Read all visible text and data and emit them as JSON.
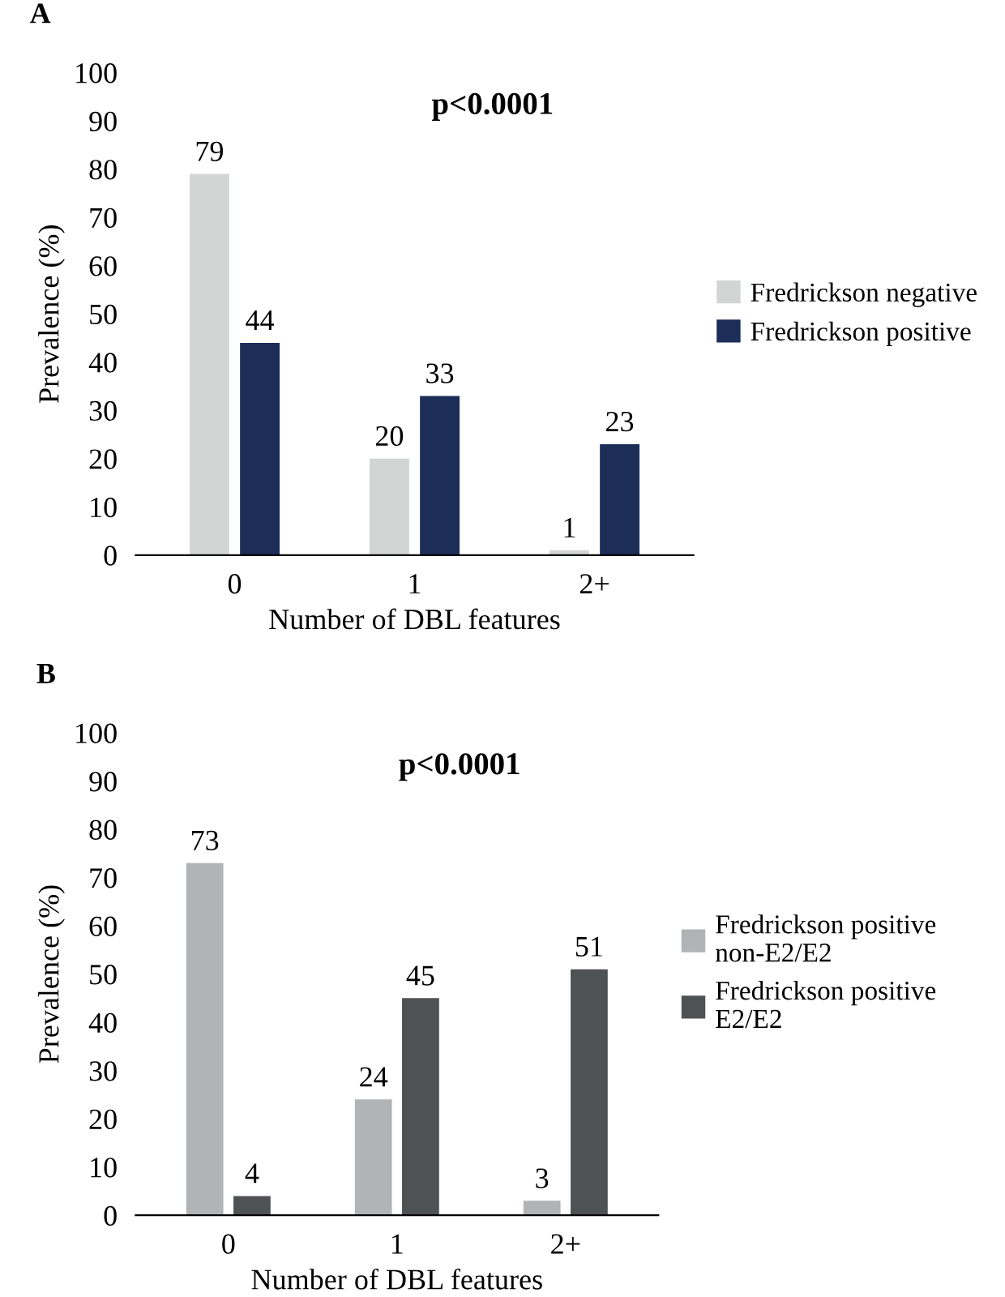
{
  "chart_data": [
    {
      "type": "bar",
      "title": "A",
      "xlabel": "Number of DBL features",
      "ylabel": "Prevalence (%)",
      "categories": [
        "0",
        "1",
        "2+"
      ],
      "series": [
        {
          "name": "Fredrickson negative",
          "color": "#d3d4d4",
          "values": [
            79,
            20,
            1
          ]
        },
        {
          "name": "Fredrickson positive",
          "color": "#1c2d58",
          "values": [
            44,
            33,
            23
          ]
        }
      ],
      "ylim": [
        0,
        100
      ],
      "yticks": [
        0,
        10,
        20,
        30,
        40,
        50,
        60,
        70,
        80,
        90,
        100
      ],
      "grid": false,
      "legend": "right",
      "data_labels": true,
      "annotations": [
        "p<0.0001"
      ]
    },
    {
      "type": "bar",
      "title": "B",
      "xlabel": "Number of DBL features",
      "ylabel": "Prevalence (%)",
      "categories": [
        "0",
        "1",
        "2+"
      ],
      "series": [
        {
          "name": "Fredrickson positive\nnon-E2/E2",
          "color": "#b1b3b4",
          "values": [
            73,
            24,
            3
          ]
        },
        {
          "name": "Fredrickson positive\nE2/E2",
          "color": "#4f5253",
          "values": [
            4,
            45,
            51
          ]
        }
      ],
      "ylim": [
        0,
        100
      ],
      "yticks": [
        0,
        10,
        20,
        30,
        40,
        50,
        60,
        70,
        80,
        90,
        100
      ],
      "grid": false,
      "legend": "right",
      "data_labels": true,
      "annotations": [
        "p<0.0001"
      ]
    }
  ]
}
